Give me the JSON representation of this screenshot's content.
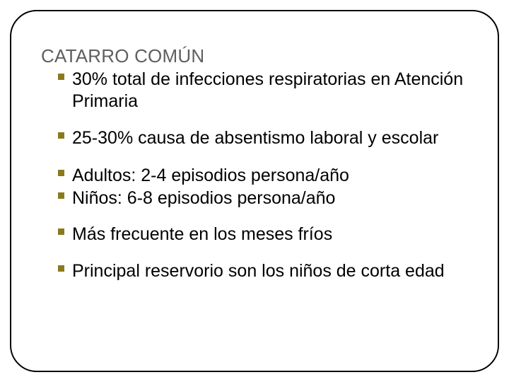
{
  "title": "CATARRO COMÚN",
  "colors": {
    "bullet": "#8a7a1e",
    "title_text": "#5f5f5f",
    "body_text": "#000000",
    "frame_border": "#000000",
    "background": "#ffffff"
  },
  "typography": {
    "title_fontsize": 26,
    "body_fontsize": 25,
    "font_family": "Arial"
  },
  "bullets": {
    "group1": {
      "b1": "30% total de infecciones respiratorias en Atención Primaria"
    },
    "group2": {
      "b1": "25-30% causa de absentismo laboral y escolar"
    },
    "group3": {
      "b1": "Adultos: 2-4 episodios persona/año",
      "b2": "Niños: 6-8 episodios persona/año"
    },
    "group4": {
      "b1": "Más frecuente en los meses fríos"
    },
    "group5": {
      "b1": "Principal reservorio son los niños de corta edad"
    }
  }
}
